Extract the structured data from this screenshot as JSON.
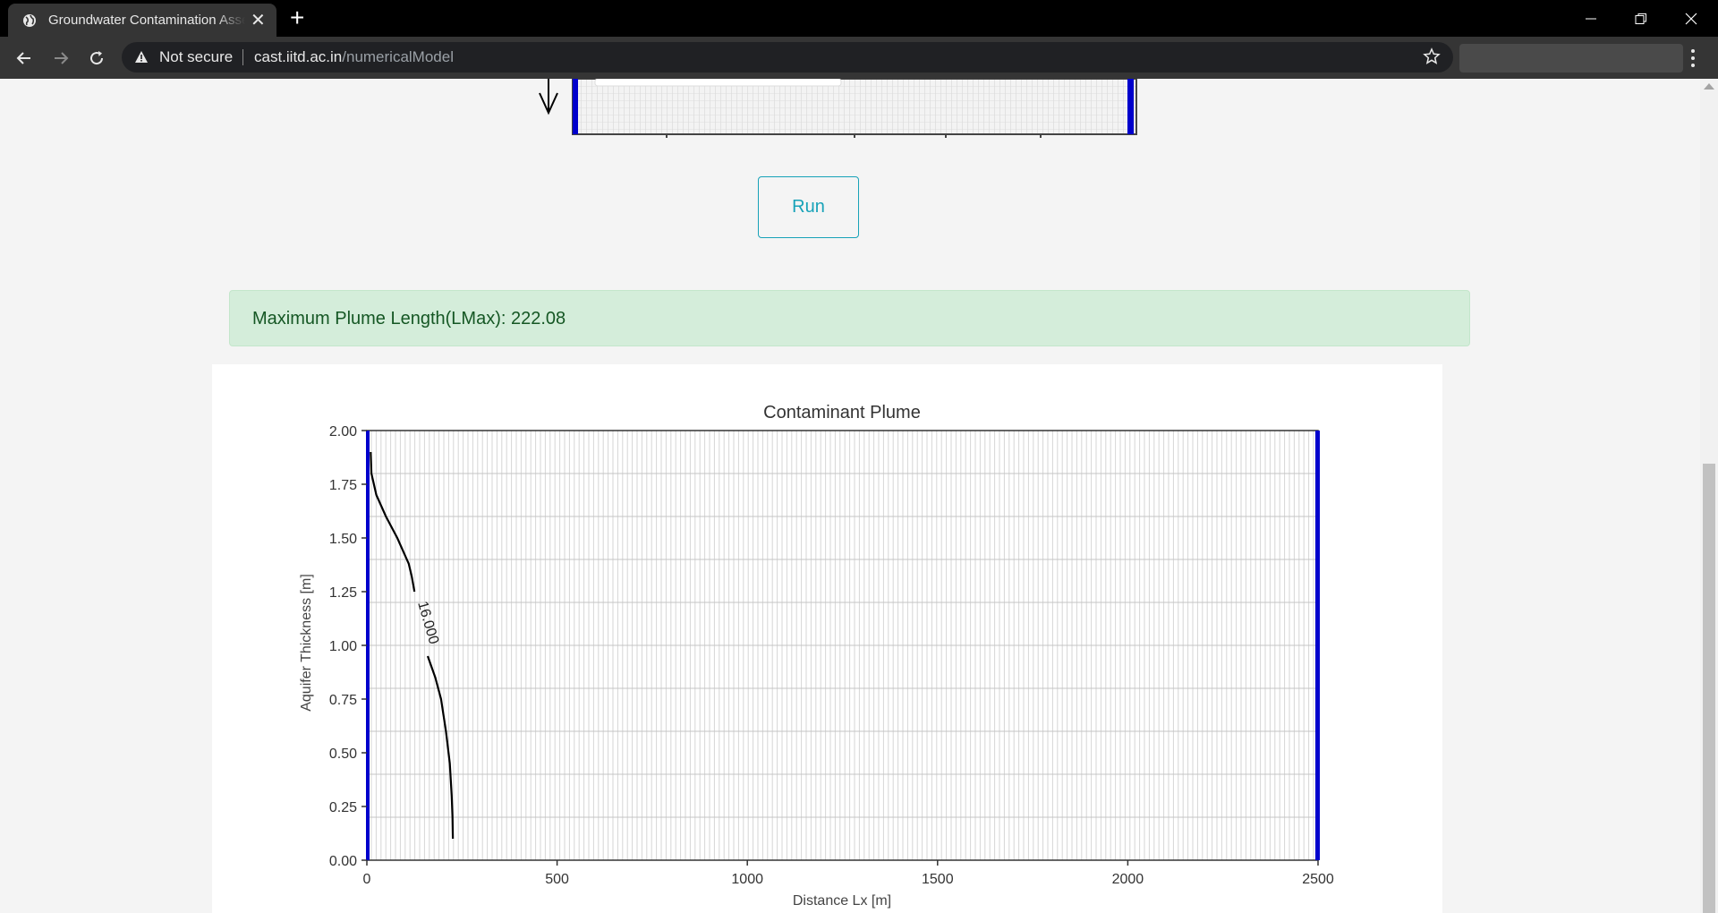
{
  "browser": {
    "tab_title": "Groundwater Contamination Assessment",
    "security_label": "Not secure",
    "url_host": "cast.iitd.ac.in",
    "url_path": "/numericalModel"
  },
  "actions": {
    "run_label": "Run"
  },
  "result": {
    "text": "Maximum Plume Length(LMax): 222.08"
  },
  "chart_data": {
    "type": "line",
    "title": "Contaminant Plume",
    "xlabel": "Distance Lx [m]",
    "ylabel": "Aquifer Thickness [m]",
    "xlim": [
      0,
      2500
    ],
    "ylim": [
      0,
      2
    ],
    "xticks": [
      0,
      500,
      1000,
      1500,
      2000,
      2500
    ],
    "yticks": [
      "0.00",
      "0.25",
      "0.50",
      "0.75",
      "1.00",
      "1.25",
      "1.50",
      "1.75",
      "2.00"
    ],
    "grid": true,
    "boundary_color": "#0000cc",
    "series": [
      {
        "color": "#000000",
        "label": "16.000",
        "points": [
          [
            10,
            1.9
          ],
          [
            12,
            1.8
          ],
          [
            25,
            1.7
          ],
          [
            50,
            1.6
          ],
          [
            80,
            1.5
          ],
          [
            110,
            1.38
          ],
          [
            118,
            1.32
          ],
          [
            125,
            1.25
          ],
          [
            160,
            0.95
          ],
          [
            180,
            0.85
          ],
          [
            195,
            0.75
          ],
          [
            208,
            0.6
          ],
          [
            218,
            0.45
          ],
          [
            223,
            0.3
          ],
          [
            225,
            0.2
          ],
          [
            226,
            0.1
          ]
        ]
      }
    ],
    "contour_label": {
      "text": "16.000",
      "x": 150,
      "y": 1.1
    }
  }
}
